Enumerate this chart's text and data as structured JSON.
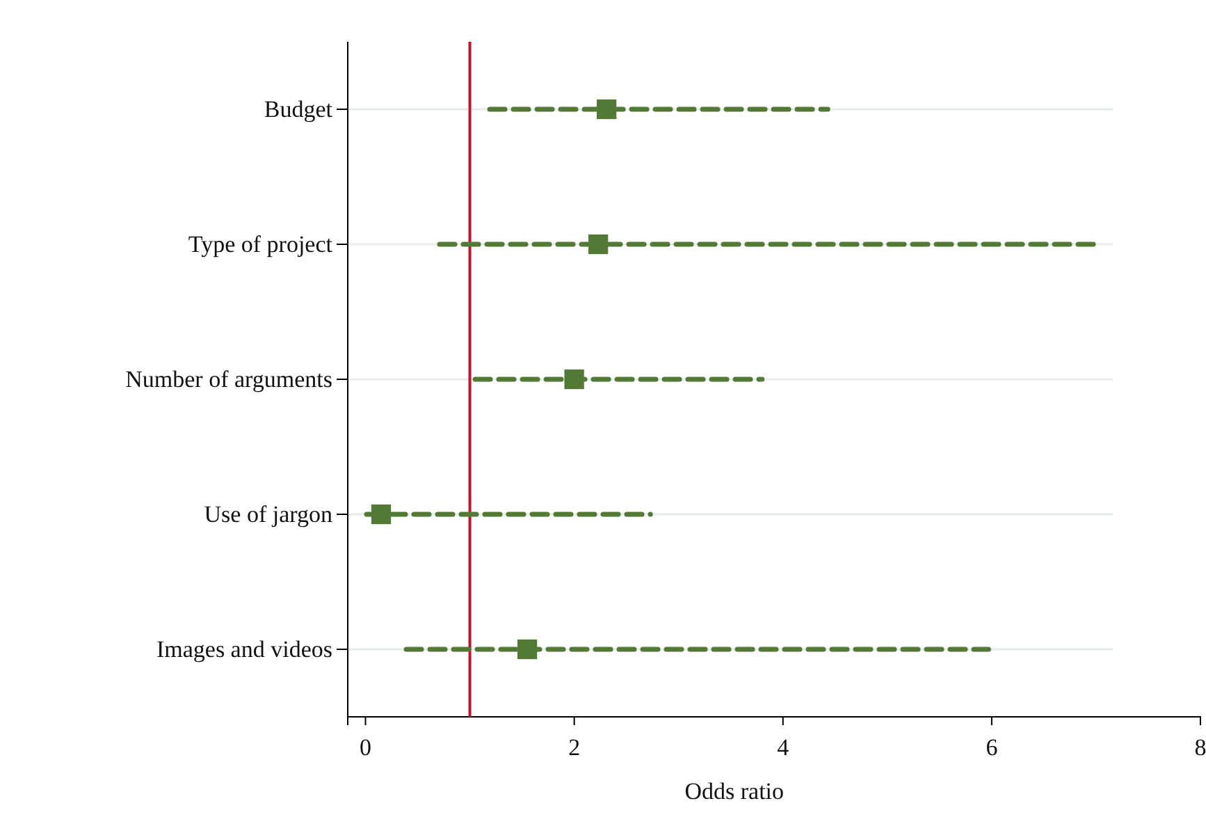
{
  "chart_data": {
    "type": "scatter",
    "orientation": "horizontal",
    "xlabel": "Odds ratio",
    "categories": [
      "Budget",
      "Type of project",
      "Number of arguments",
      "Use of jargon",
      "Images and videos"
    ],
    "values": [
      2.31,
      2.23,
      2.0,
      0.15,
      1.55
    ],
    "errors": [
      [
        1.19,
        4.43
      ],
      [
        0.71,
        6.99
      ],
      [
        1.05,
        3.8
      ],
      [
        0.01,
        2.73
      ],
      [
        0.39,
        5.97
      ]
    ],
    "color": "#537a35",
    "marker": "square",
    "line_style": "dashed",
    "xlim": [
      -0.17,
      8
    ],
    "xticks": [
      0,
      2,
      4,
      6,
      8
    ],
    "grid": "y",
    "ref_lines": [
      {
        "axis": "x",
        "value": 1,
        "color": "#c8102e"
      }
    ]
  }
}
